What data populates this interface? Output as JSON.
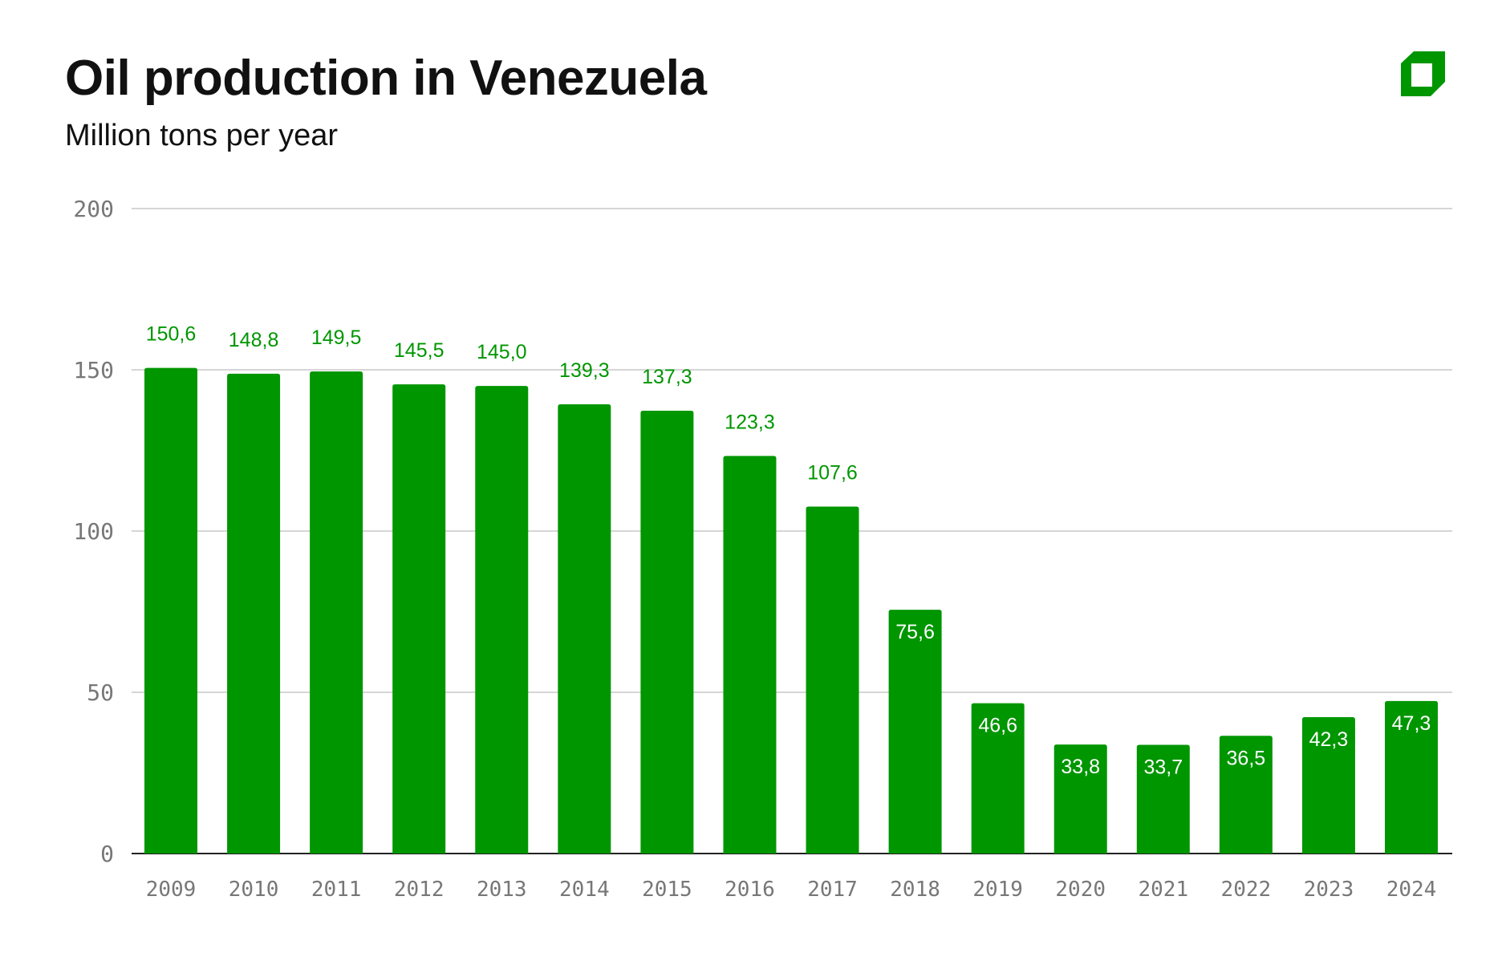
{
  "header": {
    "title": "Oil production in Venezuela",
    "subtitle": "Million tons per year",
    "logo": "green-square-logo"
  },
  "colors": {
    "bar": "#009600",
    "label_outside": "#009600",
    "label_inside": "#ffffff",
    "grid": "#c8c8c8",
    "axis_text": "#777777"
  },
  "chart_data": {
    "type": "bar",
    "title": "Oil production in Venezuela",
    "subtitle": "Million tons per year",
    "xlabel": "",
    "ylabel": "",
    "ylim": [
      0,
      200
    ],
    "yticks": [
      "0",
      "50",
      "100",
      "150",
      "200"
    ],
    "grid": true,
    "categories": [
      "2009",
      "2010",
      "2011",
      "2012",
      "2013",
      "2014",
      "2015",
      "2016",
      "2017",
      "2018",
      "2019",
      "2020",
      "2021",
      "2022",
      "2023",
      "2024"
    ],
    "values": [
      150.6,
      148.8,
      149.5,
      145.5,
      145.0,
      139.3,
      137.3,
      123.3,
      107.6,
      75.6,
      46.6,
      33.8,
      33.7,
      36.5,
      42.3,
      47.3
    ],
    "data_labels": [
      "150,6",
      "148,8",
      "149,5",
      "145,5",
      "145,0",
      "139,3",
      "137,3",
      "123,3",
      "107,6",
      "75,6",
      "46,6",
      "33,8",
      "33,7",
      "36,5",
      "42,3",
      "47,3"
    ]
  }
}
